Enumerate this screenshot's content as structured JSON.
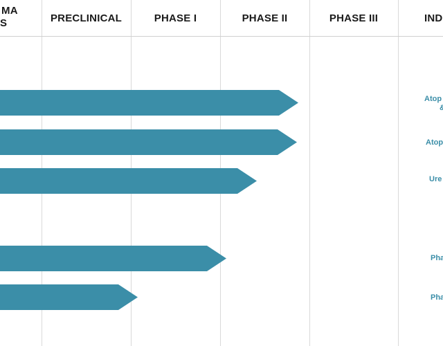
{
  "headers": {
    "program_line1": "MA",
    "program_line2": "S",
    "preclinical": "PRECLINICAL",
    "phase1": "PHASE I",
    "phase2": "PHASE II",
    "phase3": "PHASE III",
    "indication": "IND"
  },
  "indications": [
    {
      "line1": "Atop",
      "line2": "&"
    },
    {
      "line1": "Atop",
      "line2": ""
    },
    {
      "line1": "Ure",
      "line2": ""
    },
    {
      "line1": "Pha",
      "line2": ""
    },
    {
      "line1": "Pha",
      "line2": ""
    }
  ],
  "colors": {
    "bar": "#3b8ea8",
    "grid": "#d9d9d9",
    "header_text": "#1a1a1a"
  }
}
